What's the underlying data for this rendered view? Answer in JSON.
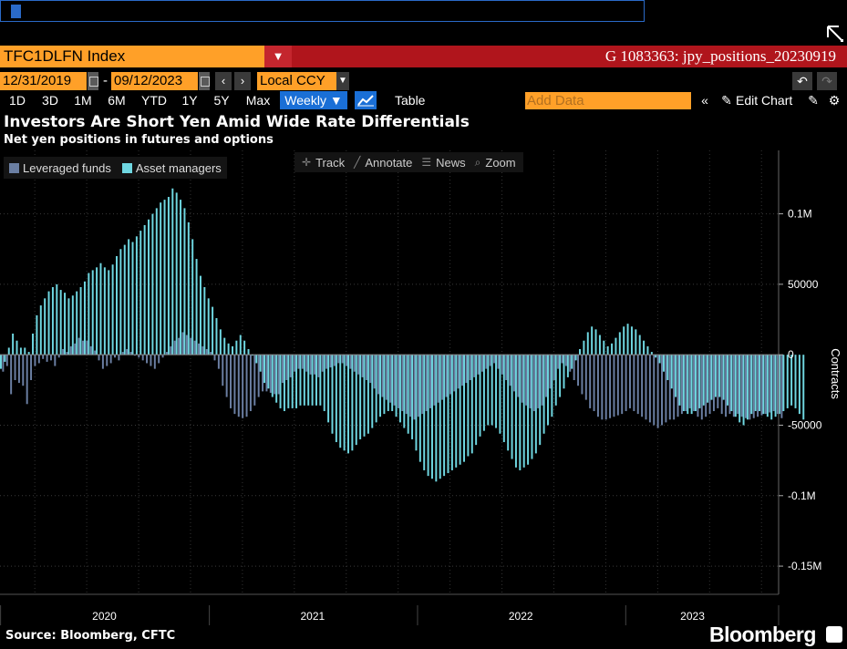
{
  "header": {
    "ticker": "TFC1DLFN Index",
    "chart_id": "G 1083363: jpy_positions_20230919"
  },
  "dates": {
    "start": "12/31/2019",
    "end": "09/12/2023",
    "currency": "Local CCY"
  },
  "toolbar": {
    "periods": [
      "1D",
      "3D",
      "1M",
      "6M",
      "YTD",
      "1Y",
      "5Y",
      "Max"
    ],
    "frequency": "Weekly ▼",
    "table_label": "Table",
    "add_data_placeholder": "Add Data",
    "edit_chart_label": "Edit Chart"
  },
  "chart_tools": {
    "track": "Track",
    "annotate": "Annotate",
    "news": "News",
    "zoom": "Zoom"
  },
  "footer": {
    "source": "Source: Bloomberg, CFTC",
    "brand": "Bloomberg"
  },
  "colors": {
    "leveraged": "#6b7fa3",
    "asset": "#6fd7e1",
    "accent_orange": "#ffa028",
    "bar_red": "#b0151c",
    "active_blue": "#1a6fd6"
  },
  "icons": [
    "expand-icon",
    "dropdown-icon",
    "calendar-icon",
    "chevron-left-icon",
    "chevron-right-icon",
    "chart-type-icon",
    "collapse-icon",
    "pencil-icon",
    "settings-icon",
    "gear-icon",
    "undo-icon",
    "redo-icon",
    "crosshair-icon",
    "annotate-icon",
    "news-icon",
    "zoom-icon",
    "bloomberg-logo-icon"
  ],
  "chart_data": {
    "type": "bar",
    "title": "Investors Are Short Yen Amid Wide Rate Differentials",
    "subtitle": "Net yen positions in futures and options",
    "ylabel": "Contracts",
    "ylim": [
      -170000,
      145000
    ],
    "y_ticks": [
      100000,
      50000,
      0,
      -50000,
      -100000,
      -150000
    ],
    "y_tick_labels": [
      "0.1M",
      "50000",
      "0",
      "-50000",
      "-0.1M",
      "-0.15M"
    ],
    "x_tick_labels": [
      "2020",
      "2021",
      "2022",
      "2023"
    ],
    "x_label_dates": [
      "2020-07-01",
      "2021-07-01",
      "2022-07-01",
      "2023-04-28"
    ],
    "x_separators": [
      "2020-01-01",
      "2021-01-01",
      "2022-01-01",
      "2023-01-01"
    ],
    "x_range": [
      "2019-12-31",
      "2023-09-26"
    ],
    "legend": "top-left",
    "grid": true,
    "series": [
      {
        "name": "Leveraged funds",
        "color": "#6b7fa3",
        "x_start": "2019-12-31",
        "interval_days": 7,
        "values": [
          -16000,
          -12000,
          -8000,
          -28000,
          -18000,
          -20000,
          -22000,
          -35000,
          -18000,
          -8000,
          -6000,
          -3000,
          -5000,
          -4000,
          -8000,
          -2000,
          4000,
          2000,
          6000,
          8000,
          12000,
          10000,
          10000,
          6000,
          3000,
          -4000,
          -10000,
          -8000,
          -6000,
          -2000,
          -4000,
          2000,
          4000,
          2000,
          0,
          -2000,
          -4000,
          -6000,
          -8000,
          -10000,
          -6000,
          -2000,
          2000,
          6000,
          10000,
          12000,
          16000,
          14000,
          12000,
          10000,
          8000,
          6000,
          4000,
          2000,
          -4000,
          -10000,
          -22000,
          -30000,
          -38000,
          -42000,
          -44000,
          -45000,
          -44000,
          -40000,
          -36000,
          -30000,
          -26000,
          -26000,
          -27000,
          -28000,
          -28000,
          -20000,
          -18000,
          -16000,
          -12000,
          -10000,
          -10000,
          -12000,
          -14000,
          -14000,
          -16000,
          -12000,
          -10000,
          -9000,
          -8000,
          -6000,
          -6000,
          -8000,
          -10000,
          -12000,
          -14000,
          -16000,
          -18000,
          -20000,
          -24000,
          -28000,
          -30000,
          -32000,
          -34000,
          -36000,
          -38000,
          -40000,
          -42000,
          -44000,
          -46000,
          -44000,
          -42000,
          -40000,
          -38000,
          -36000,
          -34000,
          -32000,
          -30000,
          -28000,
          -26000,
          -24000,
          -22000,
          -20000,
          -18000,
          -16000,
          -14000,
          -12000,
          -10000,
          -8000,
          -6000,
          -10000,
          -14000,
          -18000,
          -22000,
          -26000,
          -30000,
          -34000,
          -36000,
          -38000,
          -40000,
          -38000,
          -36000,
          -30000,
          -24000,
          -18000,
          -10000,
          -6000,
          -8000,
          -12000,
          -18000,
          -22000,
          -28000,
          -32000,
          -38000,
          -40000,
          -44000,
          -46000,
          -46000,
          -45000,
          -44000,
          -43000,
          -42000,
          -40000,
          -38000,
          -40000,
          -42000,
          -44000,
          -46000,
          -48000,
          -50000,
          -52000,
          -50000,
          -48000,
          -46000,
          -46000,
          -44000,
          -42000,
          -40000,
          -38000,
          -40000,
          -44000,
          -46000,
          -44000,
          -42000,
          -40000,
          -38000,
          -42000,
          -44000,
          -42000,
          -44000,
          -42000,
          -44000,
          -45000,
          -46000,
          -45000,
          -44000,
          -43000,
          -42000,
          -41000,
          -40000,
          -42000,
          -45000
        ]
      },
      {
        "name": "Asset managers",
        "color": "#6fd7e1",
        "x_start": "2019-12-31",
        "interval_days": 7,
        "values": [
          -10000,
          -5000,
          5000,
          15000,
          10000,
          5000,
          5000,
          2000,
          15000,
          28000,
          35000,
          40000,
          45000,
          48000,
          50000,
          46000,
          44000,
          40000,
          42000,
          45000,
          48000,
          52000,
          58000,
          60000,
          62000,
          65000,
          62000,
          60000,
          64000,
          70000,
          75000,
          78000,
          82000,
          80000,
          84000,
          88000,
          92000,
          96000,
          100000,
          104000,
          108000,
          110000,
          112000,
          118000,
          115000,
          110000,
          104000,
          94000,
          82000,
          68000,
          56000,
          48000,
          40000,
          34000,
          26000,
          18000,
          12000,
          8000,
          6000,
          10000,
          14000,
          10000,
          4000,
          0,
          -6000,
          -12000,
          -20000,
          -24000,
          -30000,
          -34000,
          -38000,
          -40000,
          -38000,
          -38000,
          -38000,
          -36000,
          -36000,
          -36000,
          -36000,
          -36000,
          -36000,
          -40000,
          -48000,
          -56000,
          -62000,
          -66000,
          -68000,
          -70000,
          -68000,
          -64000,
          -60000,
          -58000,
          -56000,
          -52000,
          -48000,
          -44000,
          -42000,
          -40000,
          -40000,
          -44000,
          -48000,
          -52000,
          -56000,
          -60000,
          -68000,
          -76000,
          -82000,
          -86000,
          -88000,
          -90000,
          -88000,
          -86000,
          -84000,
          -82000,
          -80000,
          -78000,
          -76000,
          -72000,
          -70000,
          -64000,
          -58000,
          -54000,
          -50000,
          -50000,
          -52000,
          -56000,
          -62000,
          -68000,
          -74000,
          -80000,
          -82000,
          -80000,
          -78000,
          -74000,
          -70000,
          -64000,
          -56000,
          -50000,
          -44000,
          -36000,
          -30000,
          -24000,
          -16000,
          -10000,
          -4000,
          4000,
          10000,
          16000,
          20000,
          18000,
          14000,
          10000,
          6000,
          8000,
          12000,
          16000,
          20000,
          22000,
          20000,
          18000,
          14000,
          10000,
          6000,
          2000,
          -2000,
          -6000,
          -12000,
          -18000,
          -24000,
          -30000,
          -36000,
          -40000,
          -42000,
          -42000,
          -40000,
          -38000,
          -36000,
          -34000,
          -32000,
          -30000,
          -30000,
          -32000,
          -36000,
          -40000,
          -44000,
          -48000,
          -50000,
          -46000,
          -42000,
          -40000,
          -40000,
          -42000,
          -44000,
          -46000,
          -44000,
          -42000,
          -40000,
          -38000,
          -36000,
          -38000,
          -42000,
          -46000
        ]
      }
    ]
  }
}
